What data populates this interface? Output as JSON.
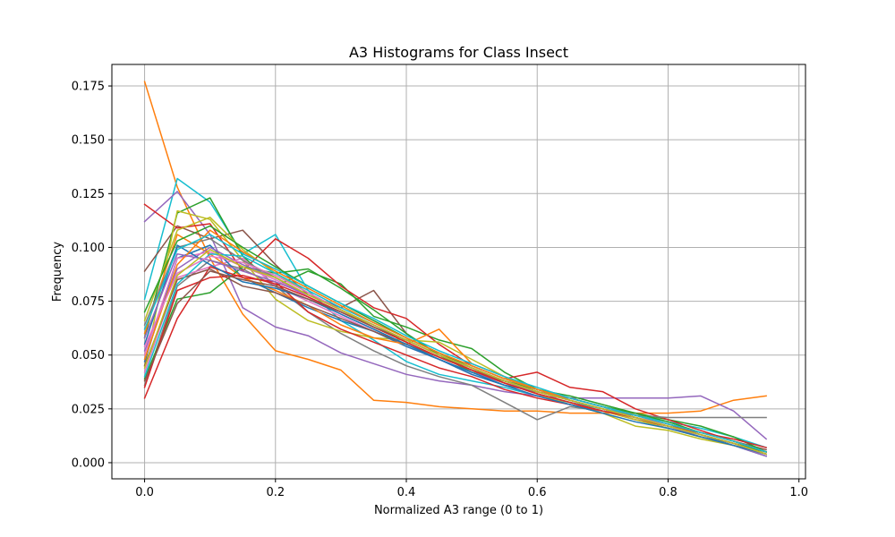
{
  "chart_data": {
    "type": "line",
    "title": "A3 Histograms for Class Insect",
    "xlabel": "Normalized A3 range (0 to 1)",
    "ylabel": "Frequency",
    "xlim": [
      -0.05,
      1.01
    ],
    "ylim": [
      -0.0075,
      0.185
    ],
    "grid": true,
    "legend": "none",
    "x_ticks": [
      0.0,
      0.2,
      0.4,
      0.6,
      0.8,
      1.0
    ],
    "x_tick_labels": [
      "0.0",
      "0.2",
      "0.4",
      "0.6",
      "0.8",
      "1.0"
    ],
    "y_ticks": [
      0.0,
      0.025,
      0.05,
      0.075,
      0.1,
      0.125,
      0.15,
      0.175
    ],
    "y_tick_labels": [
      "0.000",
      "0.025",
      "0.050",
      "0.075",
      "0.100",
      "0.125",
      "0.150",
      "0.175"
    ],
    "x": [
      0.0,
      0.05,
      0.1,
      0.15,
      0.2,
      0.25,
      0.3,
      0.35,
      0.4,
      0.45,
      0.5,
      0.55,
      0.6,
      0.65,
      0.7,
      0.75,
      0.8,
      0.85,
      0.9,
      0.95
    ],
    "series": [
      {
        "color": "#ff7f0e",
        "values": [
          0.177,
          0.128,
          0.095,
          0.069,
          0.052,
          0.048,
          0.043,
          0.029,
          0.028,
          0.026,
          0.025,
          0.024,
          0.024,
          0.023,
          0.023,
          0.023,
          0.023,
          0.024,
          0.029,
          0.031
        ]
      },
      {
        "color": "#17becf",
        "values": [
          0.076,
          0.132,
          0.121,
          0.097,
          0.106,
          0.08,
          0.066,
          0.057,
          0.047,
          0.041,
          0.038,
          0.035,
          0.031,
          0.028,
          0.025,
          0.022,
          0.019,
          0.016,
          0.012,
          0.007
        ]
      },
      {
        "color": "#9467bd",
        "values": [
          0.112,
          0.126,
          0.106,
          0.072,
          0.063,
          0.059,
          0.051,
          0.046,
          0.041,
          0.038,
          0.036,
          0.033,
          0.031,
          0.03,
          0.03,
          0.03,
          0.03,
          0.031,
          0.024,
          0.011
        ]
      },
      {
        "color": "#8c564b",
        "values": [
          0.089,
          0.11,
          0.104,
          0.108,
          0.092,
          0.078,
          0.072,
          0.08,
          0.06,
          0.05,
          0.043,
          0.038,
          0.034,
          0.03,
          0.026,
          0.022,
          0.018,
          0.014,
          0.01,
          0.006
        ]
      },
      {
        "color": "#2ca02c",
        "values": [
          0.058,
          0.116,
          0.123,
          0.096,
          0.082,
          0.089,
          0.083,
          0.068,
          0.063,
          0.057,
          0.053,
          0.042,
          0.034,
          0.03,
          0.026,
          0.023,
          0.02,
          0.017,
          0.012,
          0.005
        ]
      },
      {
        "color": "#d62728",
        "values": [
          0.12,
          0.109,
          0.111,
          0.089,
          0.104,
          0.095,
          0.082,
          0.072,
          0.067,
          0.055,
          0.045,
          0.039,
          0.042,
          0.035,
          0.033,
          0.025,
          0.02,
          0.015,
          0.01,
          0.005
        ]
      },
      {
        "color": "#7f7f7f",
        "values": [
          0.036,
          0.082,
          0.094,
          0.09,
          0.082,
          0.07,
          0.06,
          0.052,
          0.045,
          0.04,
          0.036,
          0.028,
          0.02,
          0.026,
          0.024,
          0.022,
          0.021,
          0.021,
          0.021,
          0.021
        ]
      },
      {
        "color": "#bcbd22",
        "values": [
          0.045,
          0.117,
          0.113,
          0.094,
          0.076,
          0.066,
          0.061,
          0.058,
          0.057,
          0.056,
          0.048,
          0.04,
          0.032,
          0.027,
          0.023,
          0.017,
          0.015,
          0.011,
          0.008,
          0.004
        ]
      },
      {
        "color": "#e377c2",
        "values": [
          0.042,
          0.086,
          0.091,
          0.095,
          0.082,
          0.075,
          0.068,
          0.061,
          0.054,
          0.048,
          0.041,
          0.036,
          0.031,
          0.027,
          0.024,
          0.021,
          0.018,
          0.013,
          0.009,
          0.004
        ]
      },
      {
        "color": "#1f77b4",
        "values": [
          0.047,
          0.095,
          0.101,
          0.086,
          0.079,
          0.072,
          0.066,
          0.061,
          0.054,
          0.048,
          0.041,
          0.036,
          0.033,
          0.03,
          0.026,
          0.022,
          0.018,
          0.013,
          0.008,
          0.003
        ]
      },
      {
        "color": "#ff7f0e",
        "values": [
          0.06,
          0.106,
          0.097,
          0.086,
          0.08,
          0.073,
          0.064,
          0.058,
          0.055,
          0.062,
          0.046,
          0.04,
          0.034,
          0.029,
          0.025,
          0.021,
          0.017,
          0.013,
          0.009,
          0.004
        ]
      },
      {
        "color": "#2ca02c",
        "values": [
          0.039,
          0.076,
          0.079,
          0.091,
          0.088,
          0.09,
          0.081,
          0.071,
          0.06,
          0.05,
          0.042,
          0.038,
          0.034,
          0.031,
          0.027,
          0.023,
          0.019,
          0.014,
          0.01,
          0.005
        ]
      },
      {
        "color": "#d62728",
        "values": [
          0.03,
          0.067,
          0.091,
          0.086,
          0.084,
          0.07,
          0.062,
          0.056,
          0.05,
          0.044,
          0.04,
          0.034,
          0.03,
          0.027,
          0.024,
          0.02,
          0.017,
          0.014,
          0.011,
          0.007
        ]
      },
      {
        "color": "#9467bd",
        "values": [
          0.052,
          0.09,
          0.1,
          0.092,
          0.086,
          0.077,
          0.069,
          0.062,
          0.055,
          0.048,
          0.042,
          0.037,
          0.033,
          0.029,
          0.025,
          0.021,
          0.017,
          0.012,
          0.008,
          0.003
        ]
      },
      {
        "color": "#8c564b",
        "values": [
          0.045,
          0.085,
          0.09,
          0.082,
          0.079,
          0.073,
          0.067,
          0.061,
          0.055,
          0.049,
          0.043,
          0.038,
          0.033,
          0.029,
          0.025,
          0.021,
          0.017,
          0.013,
          0.009,
          0.004
        ]
      },
      {
        "color": "#e377c2",
        "values": [
          0.05,
          0.095,
          0.098,
          0.091,
          0.085,
          0.077,
          0.07,
          0.063,
          0.056,
          0.049,
          0.043,
          0.037,
          0.032,
          0.028,
          0.024,
          0.02,
          0.016,
          0.012,
          0.008,
          0.004
        ]
      },
      {
        "color": "#7f7f7f",
        "values": [
          0.064,
          0.1,
          0.104,
          0.094,
          0.086,
          0.078,
          0.071,
          0.064,
          0.057,
          0.05,
          0.044,
          0.038,
          0.033,
          0.029,
          0.025,
          0.021,
          0.017,
          0.013,
          0.009,
          0.004
        ]
      },
      {
        "color": "#bcbd22",
        "values": [
          0.066,
          0.108,
          0.114,
          0.099,
          0.088,
          0.079,
          0.071,
          0.063,
          0.056,
          0.049,
          0.043,
          0.037,
          0.032,
          0.028,
          0.024,
          0.02,
          0.016,
          0.012,
          0.008,
          0.004
        ]
      },
      {
        "color": "#17becf",
        "values": [
          0.04,
          0.083,
          0.097,
          0.096,
          0.088,
          0.08,
          0.072,
          0.065,
          0.058,
          0.051,
          0.045,
          0.039,
          0.034,
          0.03,
          0.026,
          0.022,
          0.018,
          0.014,
          0.01,
          0.005
        ]
      },
      {
        "color": "#1f77b4",
        "values": [
          0.055,
          0.101,
          0.092,
          0.084,
          0.081,
          0.076,
          0.069,
          0.062,
          0.055,
          0.048,
          0.042,
          0.036,
          0.031,
          0.027,
          0.023,
          0.019,
          0.016,
          0.012,
          0.008,
          0.004
        ]
      },
      {
        "color": "#d62728",
        "values": [
          0.035,
          0.08,
          0.086,
          0.087,
          0.083,
          0.077,
          0.07,
          0.063,
          0.056,
          0.049,
          0.043,
          0.037,
          0.032,
          0.028,
          0.024,
          0.021,
          0.017,
          0.013,
          0.009,
          0.005
        ]
      },
      {
        "color": "#2ca02c",
        "values": [
          0.07,
          0.103,
          0.11,
          0.1,
          0.091,
          0.082,
          0.074,
          0.066,
          0.058,
          0.051,
          0.044,
          0.038,
          0.033,
          0.029,
          0.025,
          0.021,
          0.017,
          0.013,
          0.009,
          0.005
        ]
      },
      {
        "color": "#ff7f0e",
        "values": [
          0.048,
          0.092,
          0.108,
          0.098,
          0.089,
          0.081,
          0.073,
          0.065,
          0.058,
          0.051,
          0.045,
          0.039,
          0.034,
          0.03,
          0.026,
          0.022,
          0.018,
          0.014,
          0.01,
          0.005
        ]
      },
      {
        "color": "#9467bd",
        "values": [
          0.058,
          0.097,
          0.094,
          0.089,
          0.084,
          0.078,
          0.071,
          0.064,
          0.057,
          0.05,
          0.044,
          0.038,
          0.033,
          0.029,
          0.025,
          0.021,
          0.017,
          0.013,
          0.009,
          0.004
        ]
      },
      {
        "color": "#8c564b",
        "values": [
          0.038,
          0.074,
          0.089,
          0.085,
          0.082,
          0.076,
          0.07,
          0.063,
          0.057,
          0.05,
          0.044,
          0.038,
          0.033,
          0.029,
          0.025,
          0.021,
          0.017,
          0.013,
          0.009,
          0.004
        ]
      },
      {
        "color": "#17becf",
        "values": [
          0.062,
          0.099,
          0.106,
          0.097,
          0.09,
          0.082,
          0.074,
          0.067,
          0.059,
          0.052,
          0.046,
          0.04,
          0.035,
          0.03,
          0.026,
          0.022,
          0.018,
          0.014,
          0.01,
          0.005
        ]
      },
      {
        "color": "#e377c2",
        "values": [
          0.054,
          0.088,
          0.096,
          0.093,
          0.087,
          0.079,
          0.071,
          0.064,
          0.057,
          0.05,
          0.044,
          0.038,
          0.033,
          0.029,
          0.025,
          0.021,
          0.017,
          0.013,
          0.009,
          0.004
        ]
      },
      {
        "color": "#bcbd22",
        "values": [
          0.044,
          0.087,
          0.099,
          0.091,
          0.086,
          0.078,
          0.071,
          0.064,
          0.057,
          0.05,
          0.044,
          0.038,
          0.033,
          0.029,
          0.025,
          0.021,
          0.017,
          0.013,
          0.009,
          0.004
        ]
      }
    ]
  }
}
